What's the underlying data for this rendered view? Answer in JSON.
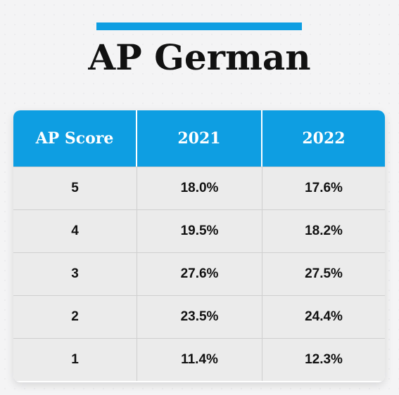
{
  "title": "AP German",
  "colors": {
    "accent": "#0e9ee2",
    "header_text": "#ffffff",
    "row_background": "#ebebeb",
    "text": "#111111"
  },
  "table": {
    "headers": [
      "AP Score",
      "2021",
      "2022"
    ],
    "rows": [
      [
        "5",
        "18.0%",
        "17.6%"
      ],
      [
        "4",
        "19.5%",
        "18.2%"
      ],
      [
        "3",
        "27.6%",
        "27.5%"
      ],
      [
        "2",
        "23.5%",
        "24.4%"
      ],
      [
        "1",
        "11.4%",
        "12.3%"
      ]
    ]
  },
  "chart_data": {
    "type": "table",
    "title": "AP German",
    "columns": [
      "AP Score",
      "2021",
      "2022"
    ],
    "categories": [
      "5",
      "4",
      "3",
      "2",
      "1"
    ],
    "series": [
      {
        "name": "2021",
        "values": [
          18.0,
          19.5,
          27.6,
          23.5,
          11.4
        ]
      },
      {
        "name": "2022",
        "values": [
          17.6,
          18.2,
          27.5,
          24.4,
          12.3
        ]
      }
    ]
  }
}
